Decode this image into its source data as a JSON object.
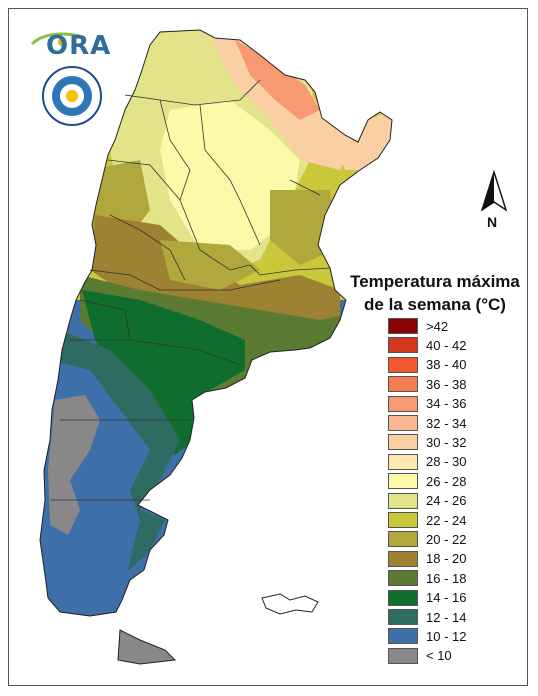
{
  "logo": {
    "text": "ORA"
  },
  "north": {
    "label": "N"
  },
  "legend": {
    "title_line1": "Temperatura máxima",
    "title_line2": "de la semana (°C)",
    "items": [
      {
        "label": ">42",
        "color": "#8b0000"
      },
      {
        "label": "40 - 42",
        "color": "#d2381e"
      },
      {
        "label": "38 - 40",
        "color": "#f05a2e"
      },
      {
        "label": "36 - 38",
        "color": "#f57c4e"
      },
      {
        "label": "34 - 36",
        "color": "#f79a72"
      },
      {
        "label": "32 - 34",
        "color": "#f9b68f"
      },
      {
        "label": "30 - 32",
        "color": "#fbcfa4"
      },
      {
        "label": "28 - 30",
        "color": "#fde9b0"
      },
      {
        "label": "26 - 28",
        "color": "#fafaa8"
      },
      {
        "label": "24 - 26",
        "color": "#e3e48a"
      },
      {
        "label": "22 - 24",
        "color": "#c8c83a"
      },
      {
        "label": "20 - 22",
        "color": "#b0a83c"
      },
      {
        "label": "18 - 20",
        "color": "#9c8232"
      },
      {
        "label": "16 - 18",
        "color": "#5b7a32"
      },
      {
        "label": "14 - 16",
        "color": "#0f6e2e"
      },
      {
        "label": "12 - 14",
        "color": "#2e6b62"
      },
      {
        "label": "10 - 12",
        "color": "#3e6fa8"
      },
      {
        "label": "< 10",
        "color": "#888888"
      }
    ]
  }
}
